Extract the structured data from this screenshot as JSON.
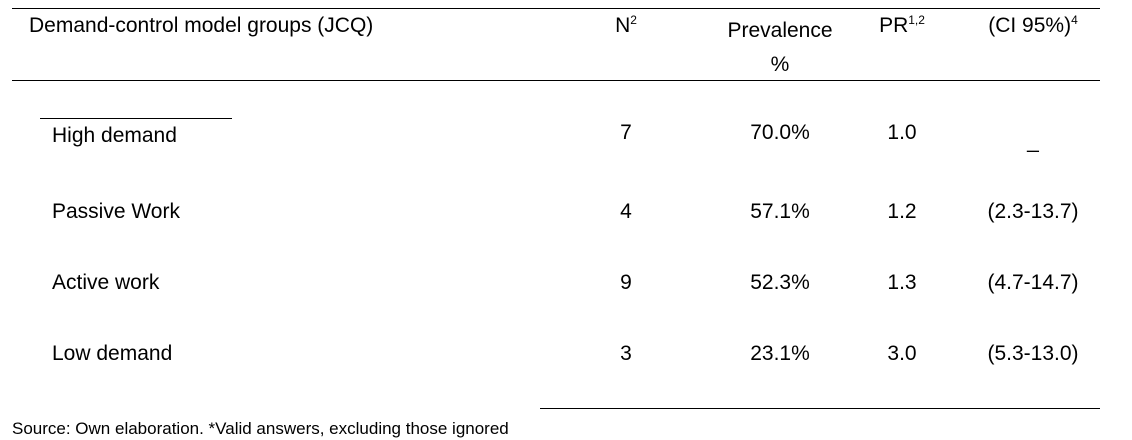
{
  "table": {
    "header": {
      "group": "Demand-control model groups (JCQ)",
      "n": "N",
      "n_sup": "2",
      "prevalence_line1": "Prevalence",
      "prevalence_line2": "%",
      "pr": "PR",
      "pr_sup": "1,2",
      "ci": "(CI 95%)",
      "ci_sup": "4"
    },
    "rows": [
      {
        "group": "High demand",
        "n": "7",
        "prevalence": "70.0%",
        "pr": "1.0",
        "ci": "_"
      },
      {
        "group": "Passive Work",
        "n": "4",
        "prevalence": "57.1%",
        "pr": "1.2",
        "ci": "(2.3-13.7)"
      },
      {
        "group": "Active work",
        "n": "9",
        "prevalence": "52.3%",
        "pr": "1.3",
        "ci": "(4.7-14.7)"
      },
      {
        "group": "Low demand",
        "n": "3",
        "prevalence": "23.1%",
        "pr": "3.0",
        "ci": "(5.3-13.0)"
      }
    ]
  },
  "footer": {
    "source": "Source: Own elaboration. *Valid answers, excluding those ignored"
  }
}
